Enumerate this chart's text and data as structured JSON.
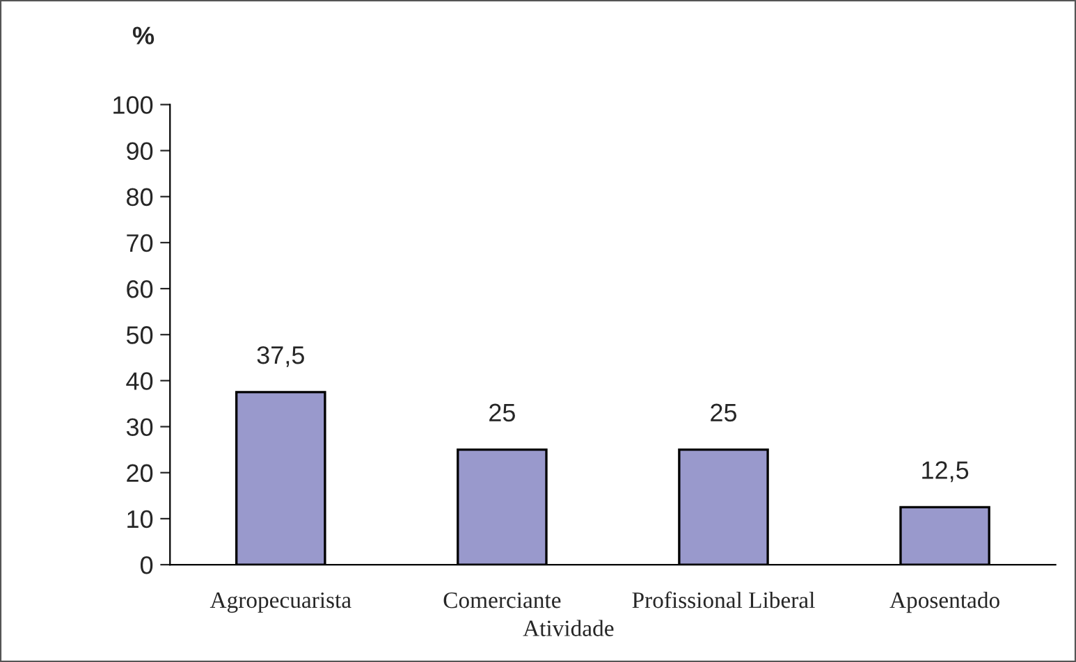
{
  "chart_data": {
    "type": "bar",
    "categories": [
      "Agropecuarista",
      "Comerciante",
      "Profissional Liberal",
      "Aposentado"
    ],
    "values": [
      37.5,
      25,
      25,
      12.5
    ],
    "value_labels": [
      "37,5",
      "25",
      "25",
      "12,5"
    ],
    "color": "#9999cc",
    "xlabel": "Atividade",
    "ylabel": "%",
    "ylim": [
      0,
      100
    ],
    "yticks": [
      0,
      10,
      20,
      30,
      40,
      50,
      60,
      70,
      80,
      90,
      100
    ],
    "grid": false,
    "legend": false
  }
}
